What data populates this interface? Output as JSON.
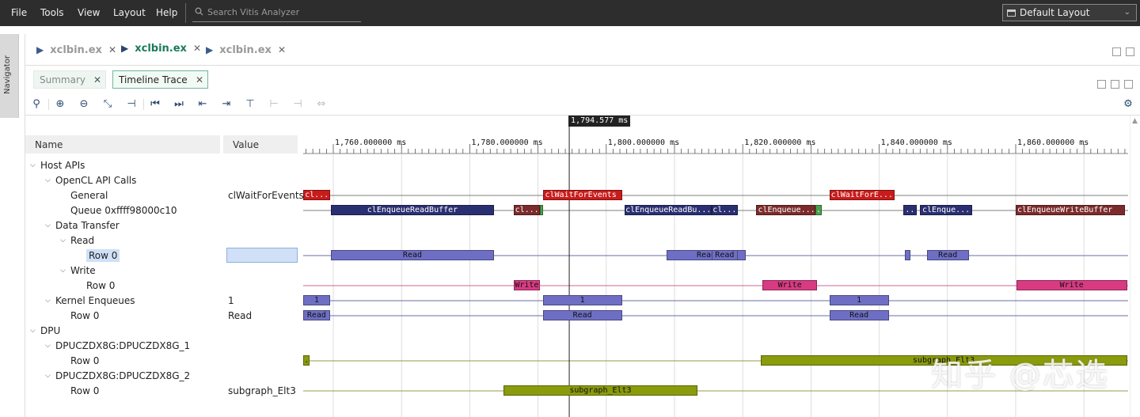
{
  "menubar": {
    "items": [
      "File",
      "Tools",
      "View",
      "Layout",
      "Help"
    ],
    "search_placeholder": "Search Vitis Analyzer",
    "layout_selector": "Default Layout"
  },
  "navigator": {
    "label": "Navigator"
  },
  "doc_tabs": [
    {
      "label": "xclbin.ex",
      "active": false
    },
    {
      "label": "xclbin.ex",
      "active": true
    },
    {
      "label": "xclbin.ex",
      "active": false
    }
  ],
  "view_tabs": [
    {
      "label": "Summary",
      "active": false
    },
    {
      "label": "Timeline Trace",
      "active": true
    }
  ],
  "toolbar": {
    "icons": [
      "search-icon",
      "zoom-in-icon",
      "zoom-out-icon",
      "zoom-fit-icon",
      "add-marker-icon",
      "go-to-start-icon",
      "go-to-end-icon",
      "previous-event-icon",
      "next-event-icon",
      "add-marker-2-icon",
      "previous-marker-icon",
      "next-marker-icon",
      "marker-range-icon",
      "settings-gear-icon"
    ]
  },
  "columns": {
    "name": "Name",
    "value": "Value"
  },
  "tree": [
    {
      "label": "Host APIs",
      "level": 0,
      "toggle": "expanded"
    },
    {
      "label": "OpenCL API Calls",
      "level": 1,
      "toggle": "expanded"
    },
    {
      "label": "General",
      "level": 2,
      "value": "clWaitForEvents"
    },
    {
      "label": "Queue 0xffff98000c10",
      "level": 2
    },
    {
      "label": "Data Transfer",
      "level": 1,
      "toggle": "expanded"
    },
    {
      "label": "Read",
      "level": 2,
      "toggle": "expanded"
    },
    {
      "label": "Row 0",
      "level": 3,
      "selected": true
    },
    {
      "label": "Write",
      "level": 2,
      "toggle": "expanded"
    },
    {
      "label": "Row 0",
      "level": 3
    },
    {
      "label": "Kernel Enqueues",
      "level": 1,
      "toggle": "expanded",
      "value": "1"
    },
    {
      "label": "Row 0",
      "level": 2,
      "value": "Read"
    },
    {
      "label": "DPU",
      "level": 0,
      "toggle": "expanded"
    },
    {
      "label": "DPUCZDX8G:DPUCZDX8G_1",
      "level": 1,
      "toggle": "expanded"
    },
    {
      "label": "Row 0",
      "level": 2
    },
    {
      "label": "DPUCZDX8G:DPUCZDX8G_2",
      "level": 1,
      "toggle": "expanded"
    },
    {
      "label": "Row 0",
      "level": 2,
      "value": "subgraph_Elt3"
    }
  ],
  "timeline": {
    "cursor_label": "1,794.577 ms",
    "cursor_ms": 1794.577,
    "tick_labels": [
      "1,760.000000 ms",
      "1,780.000000 ms",
      "1,800.000000 ms",
      "1,820.000000 ms",
      "1,840.000000 ms",
      "1,860.000000 ms"
    ],
    "tick_values_ms": [
      1760,
      1780,
      1800,
      1820,
      1840,
      1860
    ],
    "colors": {
      "api_red": "#c81c1c",
      "api_navy": "#2a2f72",
      "api_brown": "#7b2b2b",
      "api_green": "#4aa04a",
      "read_blue": "#6e6fc4",
      "write_pink": "#d83b82",
      "dpu_olive": "#8a9b0c"
    },
    "rows": [
      {
        "row": 2,
        "events": [
          {
            "label": "cl...",
            "start": 1755.6,
            "end": 1759.5,
            "color": "red"
          },
          {
            "label": "clWaitForEvents",
            "start": 1790.8,
            "end": 1802.4,
            "color": "red"
          },
          {
            "label": "clWaitForE...",
            "start": 1832.7,
            "end": 1842.3,
            "color": "red"
          }
        ]
      },
      {
        "row": 3,
        "events": [
          {
            "label": "clEnqueueReadBuffer",
            "start": 1759.6,
            "end": 1783.6,
            "color": "navy"
          },
          {
            "label": "cl...",
            "start": 1786.4,
            "end": 1790.3,
            "color": "brown"
          },
          {
            "label": "",
            "start": 1790.3,
            "end": 1790.8,
            "color": "green"
          },
          {
            "label": "clEnqueueReadBu...",
            "start": 1802.7,
            "end": 1815.4,
            "color": "navy"
          },
          {
            "label": "cl...",
            "start": 1815.4,
            "end": 1819.3,
            "color": "navy"
          },
          {
            "label": "clEnqueue...",
            "start": 1822.0,
            "end": 1830.6,
            "color": "brown"
          },
          {
            "label": ".",
            "start": 1830.6,
            "end": 1831.6,
            "color": "green"
          },
          {
            "label": "..",
            "start": 1843.5,
            "end": 1845.5,
            "color": "navy"
          },
          {
            "label": "clEnque...",
            "start": 1846.0,
            "end": 1853.6,
            "color": "navy"
          },
          {
            "label": "clEnqueueWriteBuffer",
            "start": 1860.0,
            "end": 1876.0,
            "color": "brown"
          }
        ]
      },
      {
        "row": 6,
        "events": [
          {
            "label": "Read",
            "start": 1759.7,
            "end": 1783.5,
            "color": "blue"
          },
          {
            "label": "Read",
            "start": 1808.8,
            "end": 1820.5,
            "color": "blue"
          },
          {
            "label": "Read",
            "start": 1815.4,
            "end": 1819.3,
            "color": "blue"
          },
          {
            "label": "",
            "start": 1843.8,
            "end": 1844.6,
            "color": "blue"
          },
          {
            "label": "Read",
            "start": 1847.0,
            "end": 1853.1,
            "color": "blue"
          }
        ]
      },
      {
        "row": 8,
        "events": [
          {
            "label": "Write",
            "start": 1786.4,
            "end": 1790.3,
            "color": "pink"
          },
          {
            "label": "Write",
            "start": 1822.9,
            "end": 1830.9,
            "color": "pink"
          },
          {
            "label": "Write",
            "start": 1860.1,
            "end": 1876.3,
            "color": "pink"
          }
        ]
      },
      {
        "row": 9,
        "events": [
          {
            "label": "1",
            "start": 1755.6,
            "end": 1759.5,
            "color": "blue"
          },
          {
            "label": "1",
            "start": 1790.7,
            "end": 1802.3,
            "color": "blue"
          },
          {
            "label": "1",
            "start": 1832.7,
            "end": 1841.4,
            "color": "blue"
          }
        ]
      },
      {
        "row": 10,
        "events": [
          {
            "label": "Read",
            "start": 1755.6,
            "end": 1759.5,
            "color": "blue"
          },
          {
            "label": "Read",
            "start": 1790.7,
            "end": 1802.3,
            "color": "blue"
          },
          {
            "label": "Read",
            "start": 1832.7,
            "end": 1841.4,
            "color": "blue"
          }
        ]
      },
      {
        "row": 13,
        "events": [
          {
            "label": ".",
            "start": 1755.6,
            "end": 1756.5,
            "color": "olive"
          },
          {
            "label": "subgraph_Elt3",
            "start": 1822.6,
            "end": 1876.3,
            "color": "olive"
          }
        ]
      },
      {
        "row": 15,
        "events": [
          {
            "label": "subgraph_Elt3",
            "start": 1784.9,
            "end": 1813.4,
            "color": "olive"
          }
        ]
      }
    ]
  },
  "watermark": "知乎 @芯选"
}
